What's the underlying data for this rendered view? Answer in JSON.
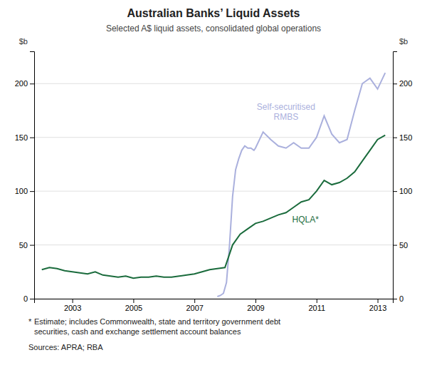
{
  "chart_data": {
    "type": "line",
    "title": "Australian Banks’ Liquid Assets",
    "subtitle": "Selected A$ liquid assets, consolidated global operations",
    "ylabel": "$b",
    "y2label": "$b",
    "footnote_marker": "*",
    "footnote": "Estimate; includes Commonwealth, state and territory government debt\nsecurities, cash and exchange settlement account balances",
    "source": "Sources: APRA; RBA",
    "xlim": [
      2001.75,
      2013.5
    ],
    "xticks": [
      2003,
      2005,
      2007,
      2009,
      2011,
      2013
    ],
    "ylim": [
      0,
      230
    ],
    "yticks": [
      0,
      50,
      100,
      150,
      200
    ],
    "y2lim": [
      0,
      230
    ],
    "y2ticks": [
      0,
      50,
      100,
      150,
      200
    ],
    "grid": true,
    "series": [
      {
        "name": "Self-securitised\nRMBS",
        "color": "#aab0dd",
        "x": [
          2007.75,
          2007.85,
          2007.95,
          2008.05,
          2008.15,
          2008.25,
          2008.35,
          2008.45,
          2008.55,
          2008.65,
          2008.75,
          2008.85,
          2008.95,
          2009.0,
          2009.25,
          2009.5,
          2009.75,
          2010.0,
          2010.25,
          2010.5,
          2010.75,
          2011.0,
          2011.25,
          2011.5,
          2011.75,
          2012.0,
          2012.25,
          2012.5,
          2012.75,
          2013.0,
          2013.25
        ],
        "values": [
          2,
          3,
          5,
          15,
          50,
          95,
          120,
          130,
          138,
          142,
          140,
          140,
          138,
          140,
          155,
          148,
          142,
          140,
          145,
          140,
          140,
          150,
          170,
          153,
          145,
          148,
          175,
          200,
          205,
          195,
          210
        ]
      },
      {
        "name": "HQLA*",
        "color": "#1a6b3c",
        "x": [
          2002.0,
          2002.25,
          2002.5,
          2002.75,
          2003.0,
          2003.25,
          2003.5,
          2003.75,
          2004.0,
          2004.25,
          2004.5,
          2004.75,
          2005.0,
          2005.25,
          2005.5,
          2005.75,
          2006.0,
          2006.25,
          2006.5,
          2006.75,
          2007.0,
          2007.25,
          2007.5,
          2007.75,
          2008.0,
          2008.25,
          2008.5,
          2008.75,
          2009.0,
          2009.25,
          2009.5,
          2009.75,
          2010.0,
          2010.25,
          2010.5,
          2010.75,
          2011.0,
          2011.25,
          2011.5,
          2011.75,
          2012.0,
          2012.25,
          2012.5,
          2012.75,
          2013.0,
          2013.25
        ],
        "values": [
          27,
          29,
          28,
          26,
          25,
          24,
          23,
          25,
          22,
          21,
          20,
          21,
          19,
          20,
          20,
          21,
          20,
          20,
          21,
          22,
          23,
          25,
          27,
          28,
          29,
          50,
          60,
          65,
          70,
          72,
          75,
          78,
          80,
          85,
          90,
          92,
          100,
          110,
          106,
          108,
          112,
          118,
          128,
          138,
          148,
          152
        ]
      }
    ]
  }
}
